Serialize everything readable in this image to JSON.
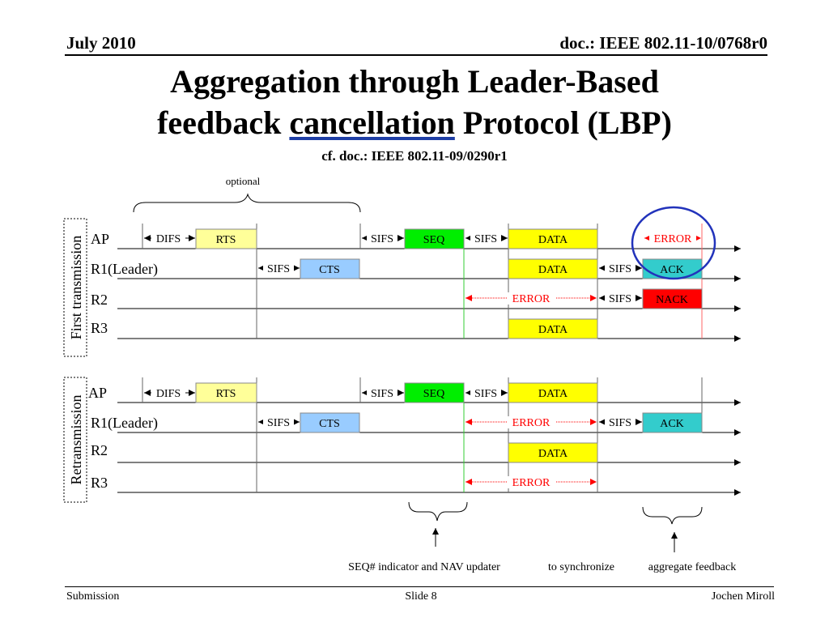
{
  "header": {
    "date": "July 2010",
    "doc": "doc.: IEEE 802.11-10/0768r0"
  },
  "title": {
    "line1": "Aggregation through Leader-Based",
    "line2_pre": "feedback",
    "line2_underlined": "cancellation",
    "line2_post": "Protocol (LBP)"
  },
  "subtitle": "cf. doc.: IEEE 802.11-09/0290r1",
  "diagram": {
    "optional_label": "optional",
    "group_first": "First transmission",
    "group_retx": "Retransmission",
    "stations": {
      "ap": "AP",
      "r1": "R1(Leader)",
      "r2": "R2",
      "r3": "R3"
    },
    "labels": {
      "difs": "DIFS",
      "sifs": "SIFS",
      "rts": "RTS",
      "cts": "CTS",
      "seq": "SEQ",
      "data": "DATA",
      "ack": "ACK",
      "nack": "NACK",
      "error": "ERROR"
    },
    "annotations": {
      "seq_note": "SEQ# indicator and NAV updater",
      "sync_note": "to synchronize",
      "agg_note": "aggregate feedback"
    },
    "colors": {
      "rts": "#ffff99",
      "cts": "#99ccff",
      "seq": "#00ee00",
      "data": "#ffff00",
      "ack": "#33cccc",
      "nack": "#ff0000",
      "error": "#ff0000",
      "highlight": "#2233bb"
    }
  },
  "footer": {
    "left": "Submission",
    "center": "Slide 8",
    "right": "Jochen Miroll"
  }
}
